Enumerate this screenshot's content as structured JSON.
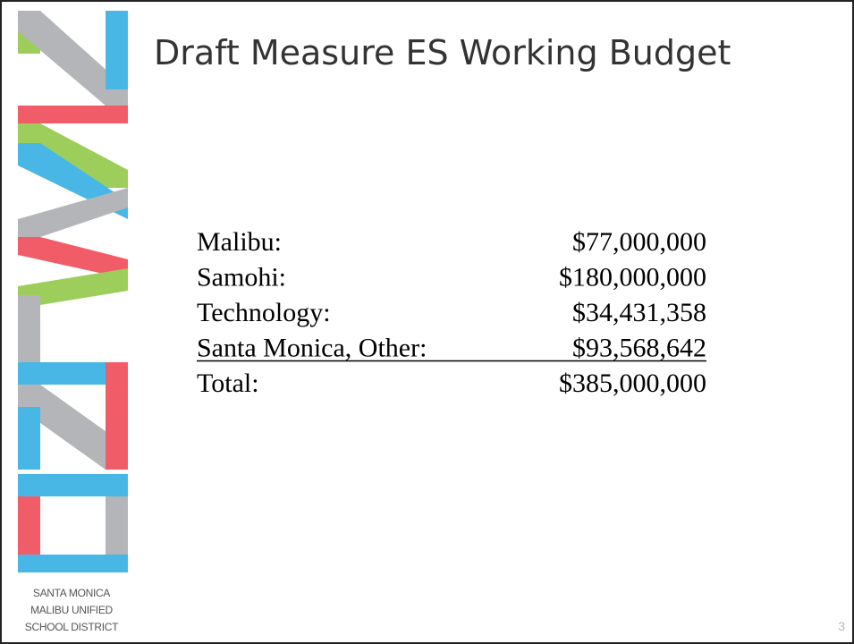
{
  "title": "Draft Measure ES Working Budget",
  "budget": {
    "rows": [
      [
        "Malibu:",
        "$77,000,000"
      ],
      [
        "Samohi:",
        "$180,000,000"
      ],
      [
        "Technology:",
        "$34,431,358"
      ],
      [
        "Santa Monica, Other:",
        "$93,568,642"
      ],
      [
        "Total:",
        "$385,000,000"
      ]
    ]
  },
  "logo": {
    "lines": [
      "SANTA MONICA",
      "MALIBU UNIFIED",
      "SCHOOL DISTRICT"
    ]
  },
  "page_number": "3"
}
